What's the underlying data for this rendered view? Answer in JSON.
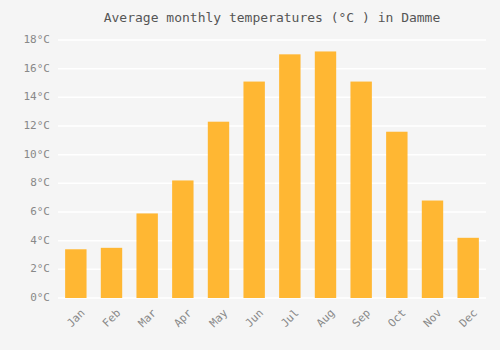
{
  "chart_data": {
    "type": "bar",
    "title": "Average monthly temperatures (°C ) in Damme",
    "categories": [
      "Jan",
      "Feb",
      "Mar",
      "Apr",
      "May",
      "Jun",
      "Jul",
      "Aug",
      "Sep",
      "Oct",
      "Nov",
      "Dec"
    ],
    "values": [
      3.4,
      3.5,
      5.9,
      8.2,
      12.3,
      15.1,
      17.0,
      17.2,
      15.1,
      11.6,
      6.8,
      4.2
    ],
    "color": "#FFB733",
    "ylim": [
      0,
      18
    ],
    "yticks": [
      {
        "value": 0,
        "label": "0°C"
      },
      {
        "value": 2,
        "label": "2°C"
      },
      {
        "value": 4,
        "label": "4°C"
      },
      {
        "value": 6,
        "label": "6°C"
      },
      {
        "value": 8,
        "label": "8°C"
      },
      {
        "value": 10,
        "label": "10°C"
      },
      {
        "value": 12,
        "label": "12°C"
      },
      {
        "value": 14,
        "label": "14°C"
      },
      {
        "value": 16,
        "label": "16°C"
      },
      {
        "value": 18,
        "label": "18°C"
      }
    ],
    "grid": true
  }
}
